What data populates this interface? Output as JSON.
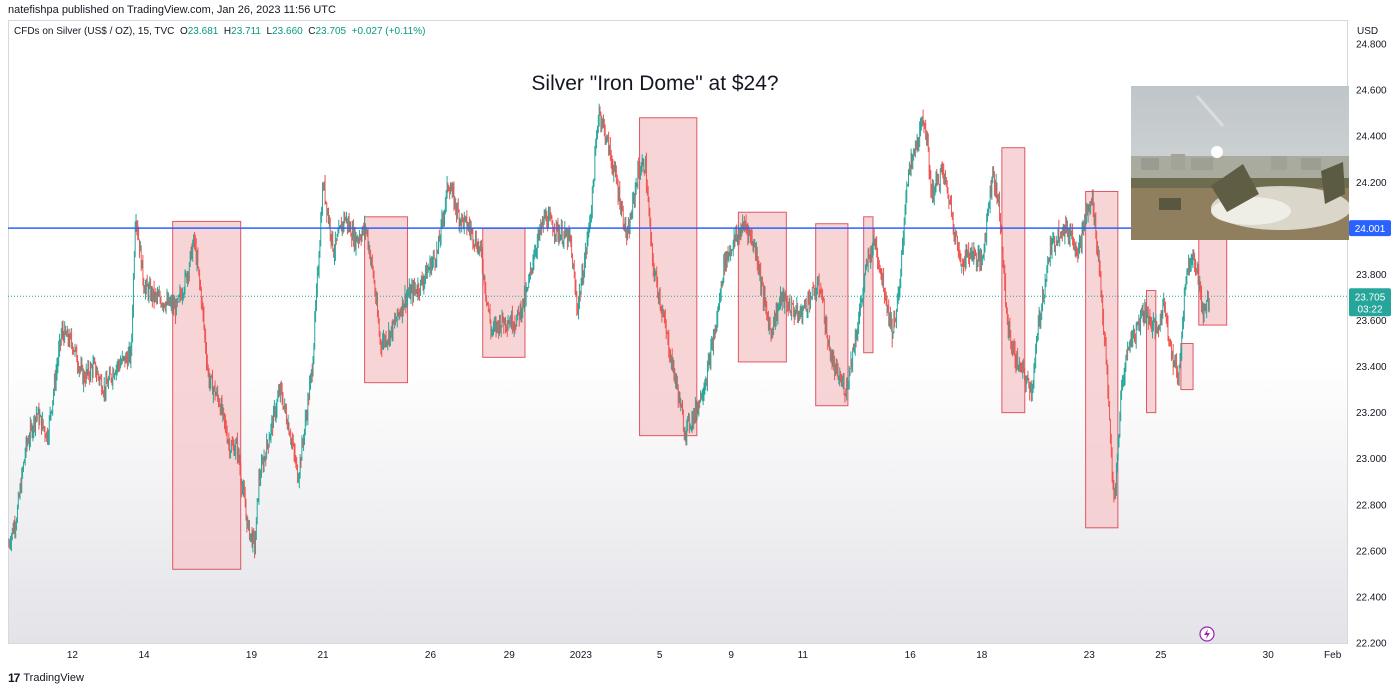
{
  "header": {
    "publisher": "natefishpa published on TradingView.com, Jan 26, 2023 11:56 UTC"
  },
  "symbol": {
    "name": "CFDs on Silver (US$ / OZ), 15, TVC",
    "o_label": "O",
    "o": "23.681",
    "h_label": "H",
    "h": "23.711",
    "l_label": "L",
    "l": "23.660",
    "c_label": "C",
    "c": "23.705",
    "change": "+0.027 (+0.11%)"
  },
  "footer": {
    "brand": "TradingView",
    "logo": "17"
  },
  "colors": {
    "up": "#26a69a",
    "down": "#ef5350",
    "level_line": "#2962ff",
    "box_fill": "#f4c7c9",
    "box_stroke": "#e25561",
    "price_badge": "#26a69a"
  },
  "chart_data": {
    "type": "candlestick",
    "title": "Silver \"Iron Dome\" at $24?",
    "currency_label": "USD",
    "ylim": [
      22.2,
      24.9
    ],
    "y_ticks": [
      "24.800",
      "24.600",
      "24.400",
      "24.200",
      "24.000",
      "23.800",
      "23.600",
      "23.400",
      "23.200",
      "23.000",
      "22.800",
      "22.600",
      "22.400",
      "22.200"
    ],
    "x_ticks": [
      {
        "label": "12",
        "i": 0.9
      },
      {
        "label": "14",
        "i": 1.9
      },
      {
        "label": "19",
        "i": 3.4
      },
      {
        "label": "21",
        "i": 4.4
      },
      {
        "label": "26",
        "i": 5.9
      },
      {
        "label": "29",
        "i": 7.0
      },
      {
        "label": "2023",
        "i": 8.0
      },
      {
        "label": "5",
        "i": 9.1
      },
      {
        "label": "9",
        "i": 10.1
      },
      {
        "label": "11",
        "i": 11.1
      },
      {
        "label": "16",
        "i": 12.6
      },
      {
        "label": "18",
        "i": 13.6
      },
      {
        "label": "23",
        "i": 15.1
      },
      {
        "label": "25",
        "i": 16.1
      },
      {
        "label": "30",
        "i": 17.6
      },
      {
        "label": "Feb",
        "i": 18.5
      }
    ],
    "x_range": [
      0,
      18.7
    ],
    "resistance_level": 24.001,
    "resistance_label": "24.001",
    "last_price": 23.705,
    "last_price_label": "23.705",
    "countdown_label": "03:22",
    "path": [
      [
        0.0,
        22.62
      ],
      [
        0.12,
        22.75
      ],
      [
        0.25,
        23.05
      ],
      [
        0.4,
        23.2
      ],
      [
        0.55,
        23.1
      ],
      [
        0.75,
        23.55
      ],
      [
        0.9,
        23.5
      ],
      [
        1.05,
        23.35
      ],
      [
        1.2,
        23.4
      ],
      [
        1.35,
        23.3
      ],
      [
        1.5,
        23.4
      ],
      [
        1.72,
        23.45
      ],
      [
        1.78,
        24.08
      ],
      [
        1.9,
        23.75
      ],
      [
        2.05,
        23.7
      ],
      [
        2.2,
        23.68
      ],
      [
        2.35,
        23.65
      ],
      [
        2.5,
        23.8
      ],
      [
        2.6,
        23.95
      ],
      [
        2.7,
        23.7
      ],
      [
        2.8,
        23.35
      ],
      [
        2.95,
        23.25
      ],
      [
        3.1,
        23.05
      ],
      [
        3.2,
        23.05
      ],
      [
        3.35,
        22.7
      ],
      [
        3.45,
        22.62
      ],
      [
        3.5,
        22.9
      ],
      [
        3.65,
        23.1
      ],
      [
        3.8,
        23.3
      ],
      [
        3.95,
        23.1
      ],
      [
        4.05,
        22.92
      ],
      [
        4.15,
        23.15
      ],
      [
        4.25,
        23.4
      ],
      [
        4.4,
        24.2
      ],
      [
        4.55,
        23.9
      ],
      [
        4.7,
        24.05
      ],
      [
        4.85,
        23.95
      ],
      [
        5.0,
        24.0
      ],
      [
        5.1,
        23.8
      ],
      [
        5.2,
        23.5
      ],
      [
        5.35,
        23.55
      ],
      [
        5.55,
        23.7
      ],
      [
        5.75,
        23.75
      ],
      [
        6.0,
        23.9
      ],
      [
        6.15,
        24.2
      ],
      [
        6.3,
        24.05
      ],
      [
        6.45,
        24.0
      ],
      [
        6.6,
        23.9
      ],
      [
        6.75,
        23.55
      ],
      [
        6.9,
        23.6
      ],
      [
        7.1,
        23.6
      ],
      [
        7.25,
        23.72
      ],
      [
        7.35,
        23.9
      ],
      [
        7.5,
        24.05
      ],
      [
        7.7,
        23.98
      ],
      [
        7.85,
        23.95
      ],
      [
        7.95,
        23.65
      ],
      [
        8.05,
        23.85
      ],
      [
        8.15,
        24.1
      ],
      [
        8.25,
        24.52
      ],
      [
        8.35,
        24.4
      ],
      [
        8.5,
        24.2
      ],
      [
        8.65,
        23.95
      ],
      [
        8.8,
        24.25
      ],
      [
        8.9,
        24.28
      ],
      [
        9.0,
        23.85
      ],
      [
        9.1,
        23.7
      ],
      [
        9.25,
        23.45
      ],
      [
        9.35,
        23.3
      ],
      [
        9.45,
        23.12
      ],
      [
        9.6,
        23.2
      ],
      [
        9.75,
        23.35
      ],
      [
        9.9,
        23.6
      ],
      [
        10.0,
        23.85
      ],
      [
        10.15,
        23.95
      ],
      [
        10.3,
        24.02
      ],
      [
        10.45,
        23.9
      ],
      [
        10.55,
        23.7
      ],
      [
        10.65,
        23.55
      ],
      [
        10.8,
        23.7
      ],
      [
        10.95,
        23.65
      ],
      [
        11.05,
        23.62
      ],
      [
        11.2,
        23.7
      ],
      [
        11.35,
        23.75
      ],
      [
        11.45,
        23.5
      ],
      [
        11.55,
        23.38
      ],
      [
        11.7,
        23.3
      ],
      [
        11.85,
        23.55
      ],
      [
        12.0,
        23.85
      ],
      [
        12.1,
        23.95
      ],
      [
        12.2,
        23.8
      ],
      [
        12.35,
        23.55
      ],
      [
        12.45,
        23.72
      ],
      [
        12.55,
        24.2
      ],
      [
        12.7,
        24.38
      ],
      [
        12.8,
        24.48
      ],
      [
        12.9,
        24.15
      ],
      [
        13.05,
        24.25
      ],
      [
        13.15,
        24.12
      ],
      [
        13.3,
        23.85
      ],
      [
        13.45,
        23.9
      ],
      [
        13.6,
        23.85
      ],
      [
        13.75,
        24.25
      ],
      [
        13.85,
        24.08
      ],
      [
        13.95,
        23.6
      ],
      [
        14.05,
        23.45
      ],
      [
        14.2,
        23.35
      ],
      [
        14.3,
        23.3
      ],
      [
        14.4,
        23.6
      ],
      [
        14.55,
        23.9
      ],
      [
        14.7,
        24.0
      ],
      [
        14.85,
        23.98
      ],
      [
        14.95,
        23.9
      ],
      [
        15.05,
        24.05
      ],
      [
        15.15,
        24.12
      ],
      [
        15.25,
        23.8
      ],
      [
        15.35,
        23.35
      ],
      [
        15.45,
        22.78
      ],
      [
        15.55,
        23.3
      ],
      [
        15.65,
        23.5
      ],
      [
        15.75,
        23.55
      ],
      [
        15.85,
        23.65
      ],
      [
        15.95,
        23.6
      ],
      [
        16.05,
        23.55
      ],
      [
        16.15,
        23.68
      ],
      [
        16.25,
        23.45
      ],
      [
        16.35,
        23.35
      ],
      [
        16.45,
        23.8
      ],
      [
        16.55,
        23.9
      ],
      [
        16.6,
        23.82
      ],
      [
        16.7,
        23.62
      ],
      [
        16.78,
        23.705
      ]
    ],
    "boxes": [
      {
        "x0": 2.3,
        "x1": 3.25,
        "y0": 22.52,
        "y1": 24.03
      },
      {
        "x0": 4.98,
        "x1": 5.58,
        "y0": 23.33,
        "y1": 24.05
      },
      {
        "x0": 6.63,
        "x1": 7.22,
        "y0": 23.44,
        "y1": 24.0
      },
      {
        "x0": 8.82,
        "x1": 9.62,
        "y0": 23.1,
        "y1": 24.48
      },
      {
        "x0": 10.2,
        "x1": 10.87,
        "y0": 23.42,
        "y1": 24.07
      },
      {
        "x0": 11.28,
        "x1": 11.73,
        "y0": 23.23,
        "y1": 24.02
      },
      {
        "x0": 11.95,
        "x1": 12.08,
        "y0": 23.46,
        "y1": 24.05
      },
      {
        "x0": 13.88,
        "x1": 14.2,
        "y0": 23.2,
        "y1": 24.35
      },
      {
        "x0": 15.05,
        "x1": 15.5,
        "y0": 22.7,
        "y1": 24.16
      },
      {
        "x0": 15.9,
        "x1": 16.03,
        "y0": 23.2,
        "y1": 23.73
      },
      {
        "x0": 16.38,
        "x1": 16.55,
        "y0": 23.3,
        "y1": 23.5
      },
      {
        "x0": 16.63,
        "x1": 17.02,
        "y0": 23.58,
        "y1": 23.97
      }
    ]
  },
  "photo": {
    "subject": "iron-dome-launcher-photo"
  }
}
